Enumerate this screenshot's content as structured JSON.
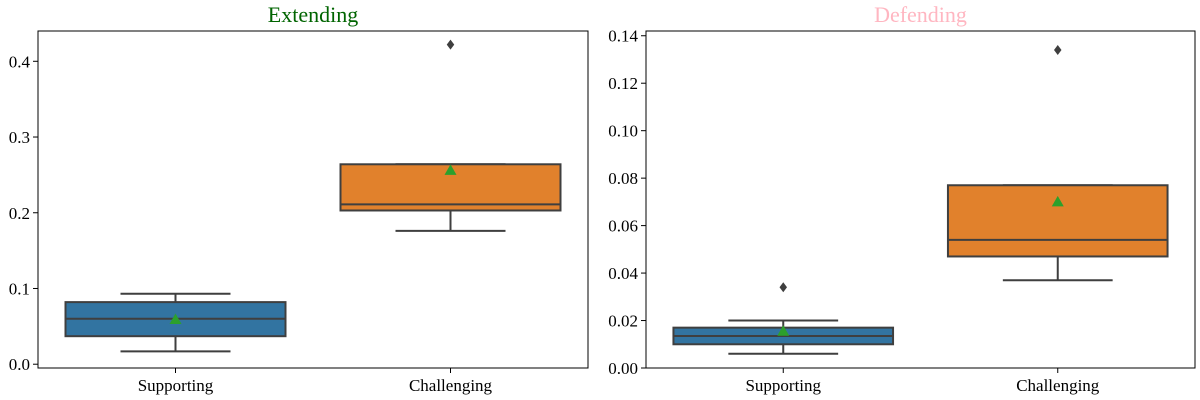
{
  "chart_data": [
    {
      "type": "box",
      "title": "Extending",
      "title_color": "#006400",
      "categories": [
        "Supporting",
        "Challenging"
      ],
      "box_colors": [
        "#3274a1",
        "#e1812c"
      ],
      "mean_marker_color": "#2ca02c",
      "ylim": [
        -0.005,
        0.44
      ],
      "yticks": [
        0.0,
        0.1,
        0.2,
        0.3,
        0.4
      ],
      "ytick_labels": [
        "0.0",
        "0.1",
        "0.2",
        "0.3",
        "0.4"
      ],
      "boxes": [
        {
          "category": "Supporting",
          "whisker_low": 0.017,
          "q1": 0.037,
          "median": 0.06,
          "q3": 0.082,
          "whisker_high": 0.093,
          "mean": 0.059,
          "outliers": []
        },
        {
          "category": "Challenging",
          "whisker_low": 0.176,
          "q1": 0.203,
          "median": 0.211,
          "q3": 0.264,
          "whisker_high": 0.264,
          "mean": 0.256,
          "outliers": [
            0.422
          ]
        }
      ]
    },
    {
      "type": "box",
      "title": "Defending",
      "title_color": "#ffb6c1",
      "categories": [
        "Supporting",
        "Challenging"
      ],
      "box_colors": [
        "#3274a1",
        "#e1812c"
      ],
      "mean_marker_color": "#2ca02c",
      "ylim": [
        0.0,
        0.142
      ],
      "yticks": [
        0.0,
        0.02,
        0.04,
        0.06,
        0.08,
        0.1,
        0.12,
        0.14
      ],
      "ytick_labels": [
        "0.00",
        "0.02",
        "0.04",
        "0.06",
        "0.08",
        "0.10",
        "0.12",
        "0.14"
      ],
      "boxes": [
        {
          "category": "Supporting",
          "whisker_low": 0.006,
          "q1": 0.01,
          "median": 0.0135,
          "q3": 0.017,
          "whisker_high": 0.02,
          "mean": 0.0155,
          "outliers": [
            0.034
          ]
        },
        {
          "category": "Challenging",
          "whisker_low": 0.037,
          "q1": 0.047,
          "median": 0.054,
          "q3": 0.077,
          "whisker_high": 0.077,
          "mean": 0.07,
          "outliers": [
            0.134
          ]
        }
      ]
    }
  ]
}
